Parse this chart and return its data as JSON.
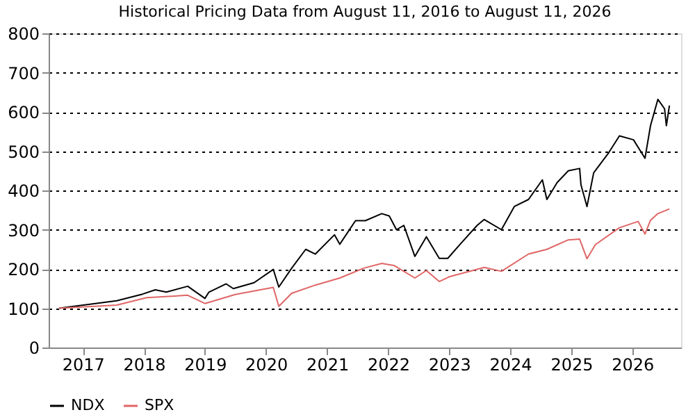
{
  "chart_data": {
    "type": "line",
    "title": "Historical Pricing Data from August 11, 2016 to August 11, 2026",
    "series": [
      {
        "name": "NDX",
        "color": "#000000",
        "x": [
          "2016-08-11",
          "2017-02-28",
          "2017-07-22",
          "2017-12-24",
          "2018-03-10",
          "2018-05-15",
          "2018-09-20",
          "2019-01-01",
          "2019-01-25",
          "2019-05-08",
          "2019-06-20",
          "2019-10-22",
          "2020-02-14",
          "2020-03-18",
          "2020-06-03",
          "2020-08-26",
          "2020-10-23",
          "2021-02-14",
          "2021-03-18",
          "2021-06-20",
          "2021-08-18",
          "2021-11-24",
          "2022-01-08",
          "2022-02-20",
          "2022-04-05",
          "2022-06-10",
          "2022-08-18",
          "2022-11-03",
          "2022-12-24",
          "2023-03-10",
          "2023-06-18",
          "2023-07-30",
          "2023-11-10",
          "2024-01-26",
          "2024-04-20",
          "2024-07-12",
          "2024-08-08",
          "2024-10-08",
          "2024-12-14",
          "2025-02-20",
          "2025-02-28",
          "2025-04-05",
          "2025-05-15",
          "2025-08-08",
          "2025-10-16",
          "2026-01-08",
          "2026-03-18",
          "2026-04-20",
          "2026-06-03",
          "2026-07-13",
          "2026-07-24",
          "2026-08-11"
        ],
        "values": [
          100,
          111,
          119,
          136,
          147,
          141,
          156,
          125,
          141,
          162,
          150,
          165,
          199,
          154,
          202,
          250,
          238,
          287,
          263,
          323,
          323,
          341,
          335,
          300,
          311,
          232,
          282,
          227,
          227,
          264,
          311,
          326,
          300,
          359,
          377,
          427,
          377,
          420,
          450,
          456,
          414,
          359,
          445,
          493,
          539,
          529,
          482,
          565,
          632,
          608,
          565,
          616
        ]
      },
      {
        "name": "SPX",
        "color": "#e06666",
        "x": [
          "2016-08-11",
          "2017-07-22",
          "2018-01-18",
          "2018-09-20",
          "2019-01-01",
          "2019-07-01",
          "2020-02-14",
          "2020-03-18",
          "2020-06-03",
          "2020-10-23",
          "2021-03-18",
          "2021-08-08",
          "2021-11-24",
          "2022-02-05",
          "2022-06-10",
          "2022-08-18",
          "2022-11-03",
          "2023-01-01",
          "2023-07-30",
          "2023-11-10",
          "2024-04-20",
          "2024-08-08",
          "2024-12-14",
          "2025-02-20",
          "2025-04-05",
          "2025-05-25",
          "2025-10-16",
          "2026-02-05",
          "2026-03-18",
          "2026-04-20",
          "2026-06-03",
          "2026-08-11"
        ],
        "values": [
          100,
          108,
          127,
          133,
          112,
          135,
          153,
          105,
          138,
          159,
          177,
          202,
          214,
          209,
          177,
          196,
          168,
          180,
          204,
          194,
          238,
          250,
          274,
          276,
          226,
          262,
          305,
          321,
          289,
          324,
          341,
          353
        ]
      }
    ],
    "xlim": [
      "2016-06-10",
      "2026-10-20"
    ],
    "xticks": [
      {
        "value": "2017",
        "label": "2017"
      },
      {
        "value": "2018",
        "label": "2018"
      },
      {
        "value": "2019",
        "label": "2019"
      },
      {
        "value": "2020",
        "label": "2020"
      },
      {
        "value": "2021",
        "label": "2021"
      },
      {
        "value": "2022",
        "label": "2022"
      },
      {
        "value": "2023",
        "label": "2023"
      },
      {
        "value": "2024",
        "label": "2024"
      },
      {
        "value": "2025",
        "label": "2025"
      },
      {
        "value": "2026",
        "label": "2026"
      }
    ],
    "ylim": [
      0,
      800
    ],
    "yticks": [
      0,
      100,
      200,
      300,
      400,
      500,
      600,
      700,
      800
    ],
    "grid": "y",
    "legend": "bottom",
    "line_style": "solid"
  }
}
